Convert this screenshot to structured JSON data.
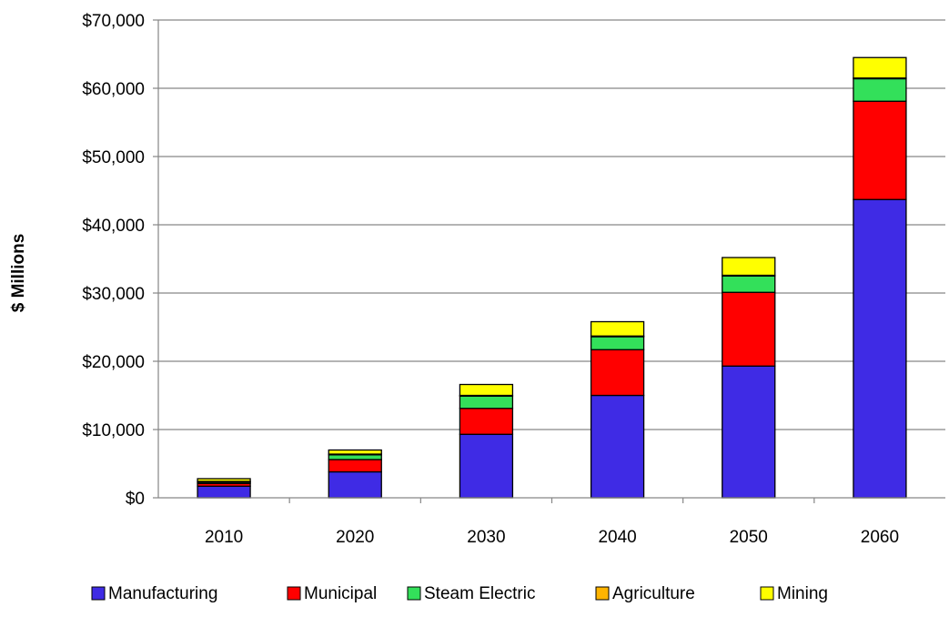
{
  "chart_data": {
    "type": "bar",
    "stacked": true,
    "title": "",
    "xlabel": "",
    "ylabel": "$ Millions",
    "categories": [
      "2010",
      "2020",
      "2030",
      "2040",
      "2050",
      "2060"
    ],
    "ylim": [
      0,
      70000
    ],
    "yticks": [
      0,
      10000,
      20000,
      30000,
      40000,
      50000,
      60000,
      70000
    ],
    "ytick_labels": [
      "$0",
      "$10,000",
      "$20,000",
      "$30,000",
      "$40,000",
      "$50,000",
      "$60,000",
      "$70,000"
    ],
    "grid": true,
    "legend_position": "bottom",
    "series": [
      {
        "name": "Manufacturing",
        "color": "#3f2be5",
        "values": [
          1700,
          3800,
          9300,
          15000,
          19300,
          43700
        ]
      },
      {
        "name": "Municipal",
        "color": "#ff0000",
        "values": [
          400,
          1800,
          3800,
          6700,
          10800,
          14400
        ]
      },
      {
        "name": "Steam Electric",
        "color": "#33e05a",
        "values": [
          200,
          700,
          1800,
          1900,
          2400,
          3300
        ]
      },
      {
        "name": "Agriculture",
        "color": "#ffb400",
        "values": [
          100,
          100,
          100,
          100,
          100,
          100
        ]
      },
      {
        "name": "Mining",
        "color": "#ffff00",
        "values": [
          400,
          600,
          1600,
          2100,
          2600,
          3000
        ]
      }
    ]
  }
}
